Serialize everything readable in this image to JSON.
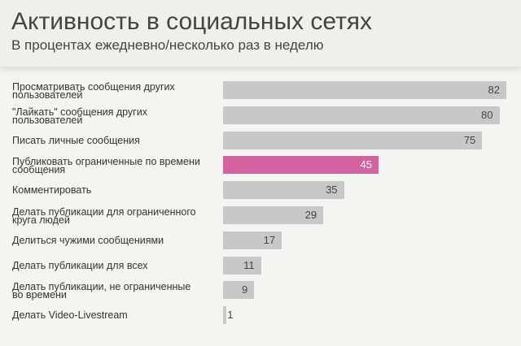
{
  "chart_data": {
    "type": "bar",
    "orientation": "horizontal",
    "title": "Активность в социальных сетях",
    "subtitle": "В процентах ежедневно/несколько раз в неделю",
    "categories": [
      [
        "Просматривать сообщения других",
        "пользователей"
      ],
      [
        "\"Лайкать\" сообщения других",
        "пользователей"
      ],
      [
        "Писать личные сообщения"
      ],
      [
        "Публиковать ограниченные по времени",
        "сообщения"
      ],
      [
        "Комментировать"
      ],
      [
        "Делать публикации для ограниченного",
        "круга людей"
      ],
      [
        "Делиться чужими сообщениями"
      ],
      [
        "Делать публикации для всех"
      ],
      [
        "Делать публикации, не ограниченные",
        "во времени"
      ],
      [
        "Делать Video-Livestream"
      ]
    ],
    "values": [
      82,
      80,
      75,
      45,
      35,
      29,
      17,
      11,
      9,
      1
    ],
    "highlight_index": 3,
    "colors": {
      "bar": "#c8c8c8",
      "highlight": "#d4629f"
    },
    "xlim": [
      0,
      82
    ],
    "grid": false,
    "legend": "none"
  }
}
